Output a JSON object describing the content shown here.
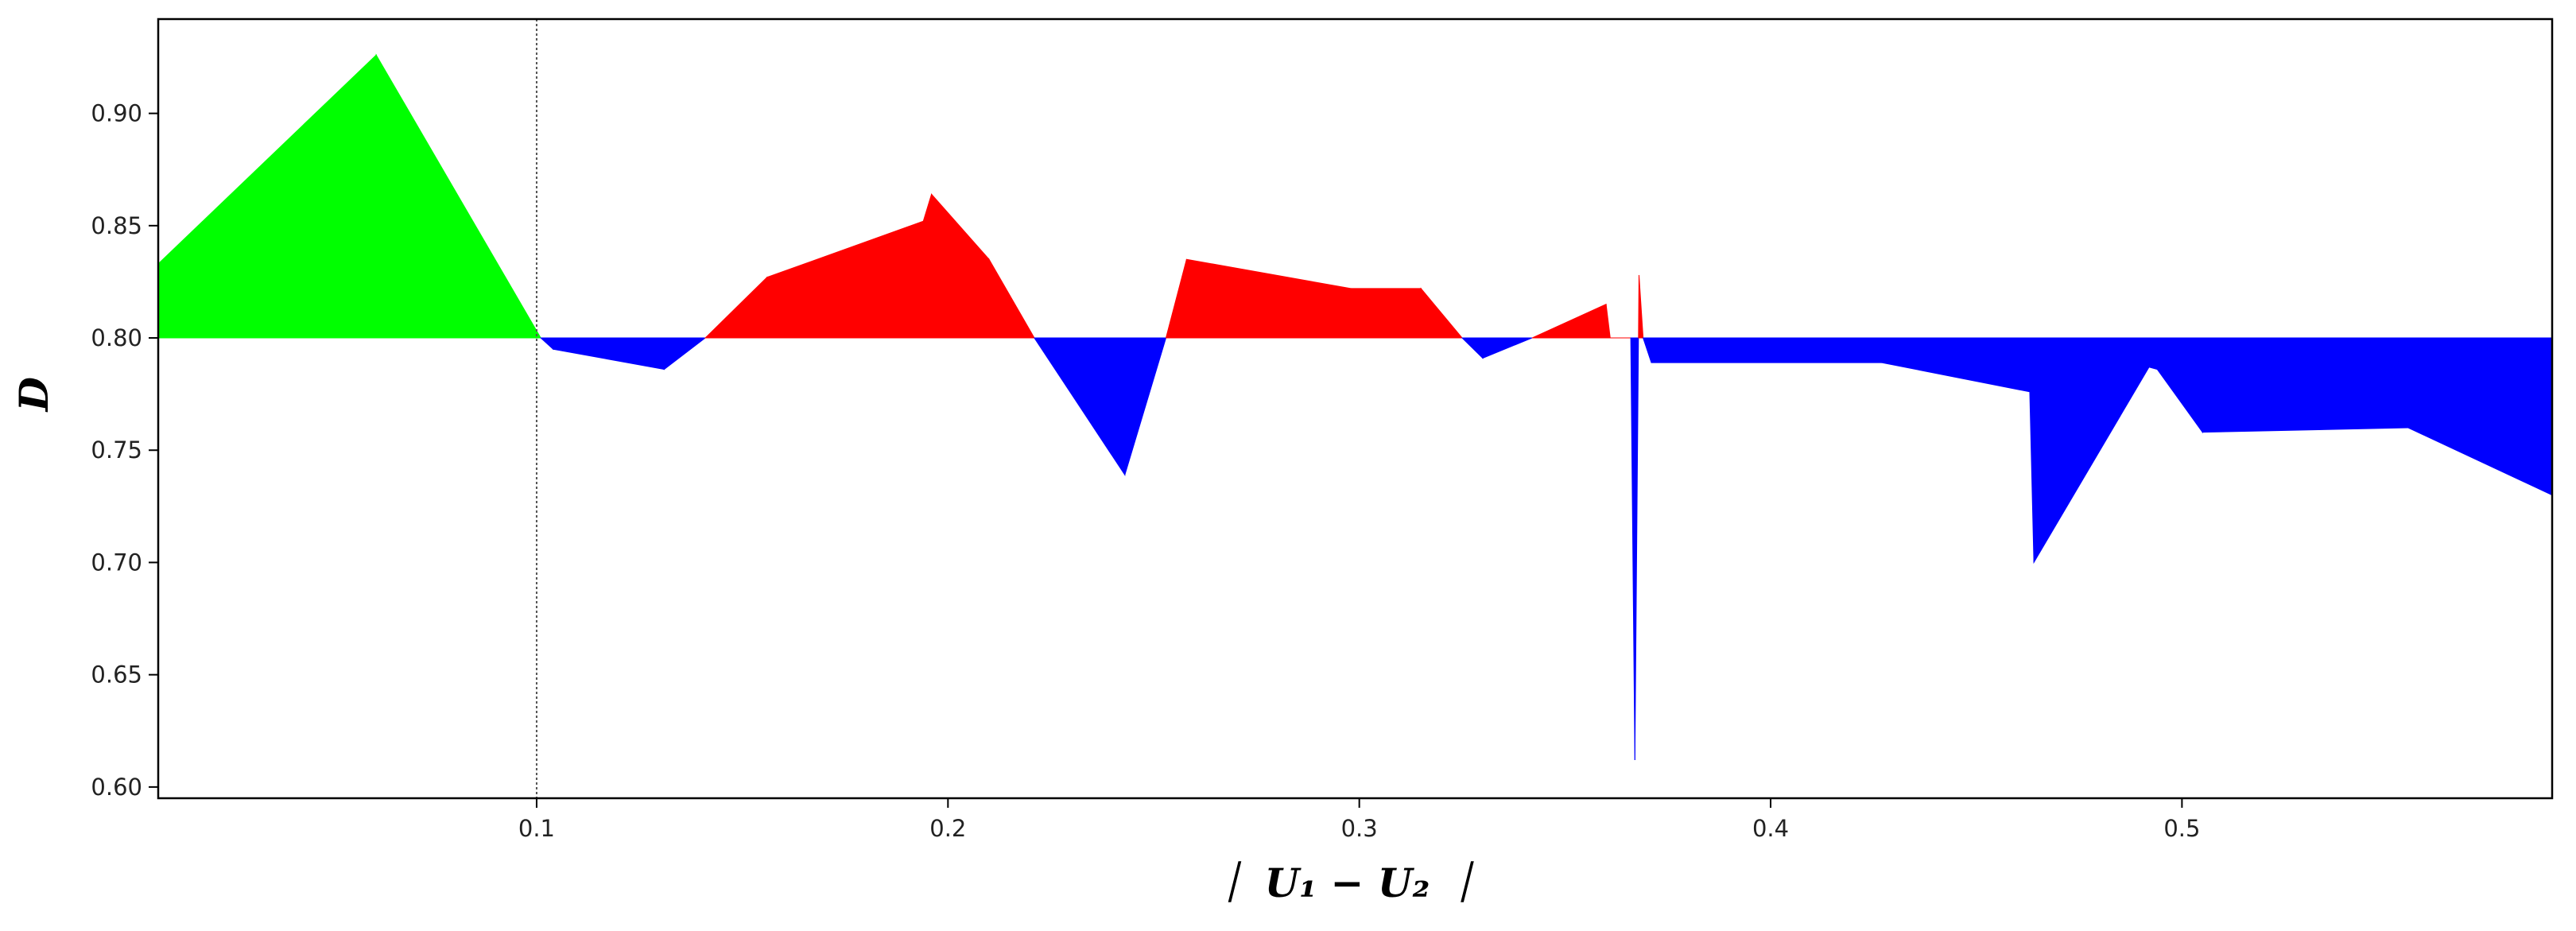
{
  "chart_data": {
    "type": "area",
    "xlabel": "｜ U₁ − U₂ ｜",
    "ylabel": "D",
    "xlim": [
      0.008,
      0.59
    ],
    "ylim": [
      0.595,
      0.942
    ],
    "baseline": 0.8,
    "threshold_x": 0.1,
    "x_ticks": [
      "0.1",
      "0.2",
      "0.3",
      "0.4",
      "0.5"
    ],
    "y_ticks": [
      "0.60",
      "0.65",
      "0.70",
      "0.75",
      "0.80",
      "0.85",
      "0.90"
    ],
    "grid": false,
    "legend": "none",
    "colors": {
      "below_threshold_fill": "#00ff00",
      "above_baseline_fill": "#ff0000",
      "below_baseline_fill": "#0000ff",
      "threshold_line": "#555555"
    },
    "series": [
      {
        "x": [
          0.008,
          0.061,
          0.101,
          0.104,
          0.131,
          0.141,
          0.156,
          0.194,
          0.196,
          0.21,
          0.221,
          0.243,
          0.253,
          0.258,
          0.298,
          0.315,
          0.325,
          0.33,
          0.342,
          0.36,
          0.361,
          0.366,
          0.367,
          0.368,
          0.369,
          0.371,
          0.427,
          0.463,
          0.464,
          0.492,
          0.494,
          0.505,
          0.555,
          0.59
        ],
        "y": [
          0.833,
          0.926,
          0.8,
          0.795,
          0.786,
          0.8,
          0.827,
          0.852,
          0.864,
          0.835,
          0.8,
          0.739,
          0.8,
          0.835,
          0.822,
          0.822,
          0.8,
          0.791,
          0.8,
          0.815,
          0.8,
          0.8,
          0.612,
          0.828,
          0.8,
          0.789,
          0.789,
          0.776,
          0.7,
          0.787,
          0.786,
          0.758,
          0.76,
          0.73
        ]
      }
    ]
  }
}
